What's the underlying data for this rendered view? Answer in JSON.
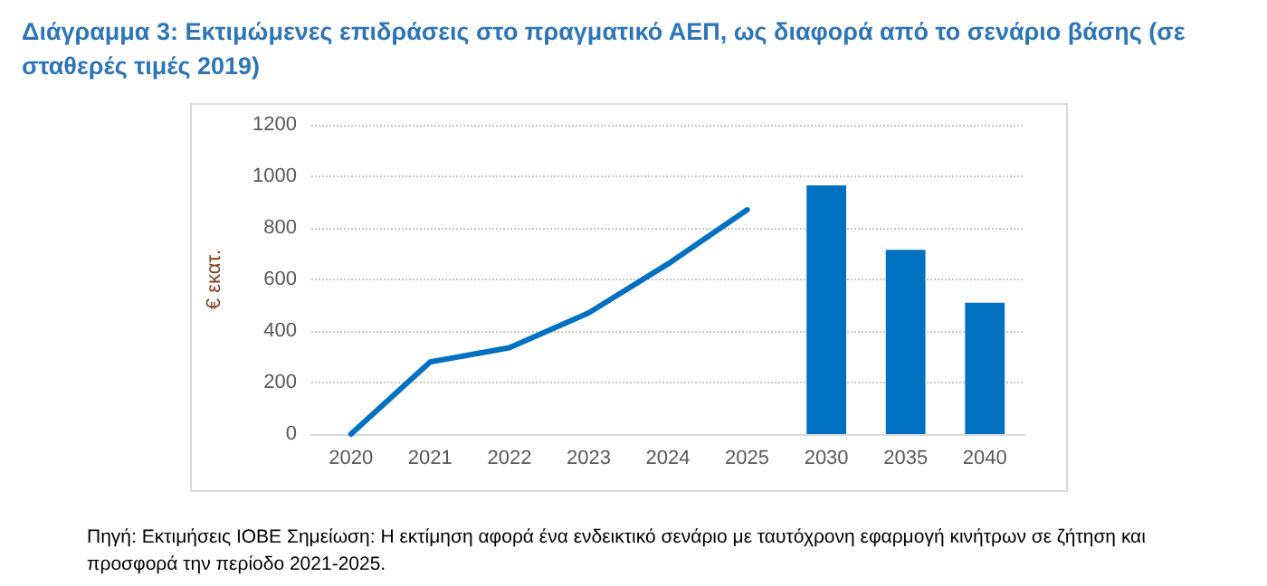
{
  "chart_data": {
    "type": "bar",
    "title": "Διάγραμμα 3: Εκτιμώμενες επιδράσεις στο πραγματικό ΑΕΠ, ως διαφορά από το σενάριο βάσης (σε σταθερές τιμές 2019)",
    "ylabel": "€ εκατ.",
    "categories": [
      "2020",
      "2021",
      "2022",
      "2023",
      "2024",
      "2025",
      "2030",
      "2035",
      "2040"
    ],
    "series": [
      {
        "type": "line",
        "color": "#0070c0",
        "values": [
          0,
          280,
          335,
          470,
          660,
          870,
          null,
          null,
          null
        ]
      },
      {
        "color": "#0070c0",
        "values": [
          null,
          null,
          null,
          null,
          null,
          null,
          965,
          715,
          510
        ]
      }
    ],
    "ylim": [
      0,
      1200
    ],
    "yticks": [
      0,
      200,
      400,
      600,
      800,
      1000,
      1200
    ],
    "grid": "y",
    "marker": "none",
    "line_style": "solid",
    "annotations": [
      "Πηγή: Εκτιμήσεις ΙΟΒΕ  Σημείωση: Η εκτίμηση αφορά ένα ενδεικτικό σενάριο με ταυτόχρονη εφαρμογή κινήτρων σε ζήτηση και προσφορά την περίοδο 2021-2025."
    ]
  }
}
